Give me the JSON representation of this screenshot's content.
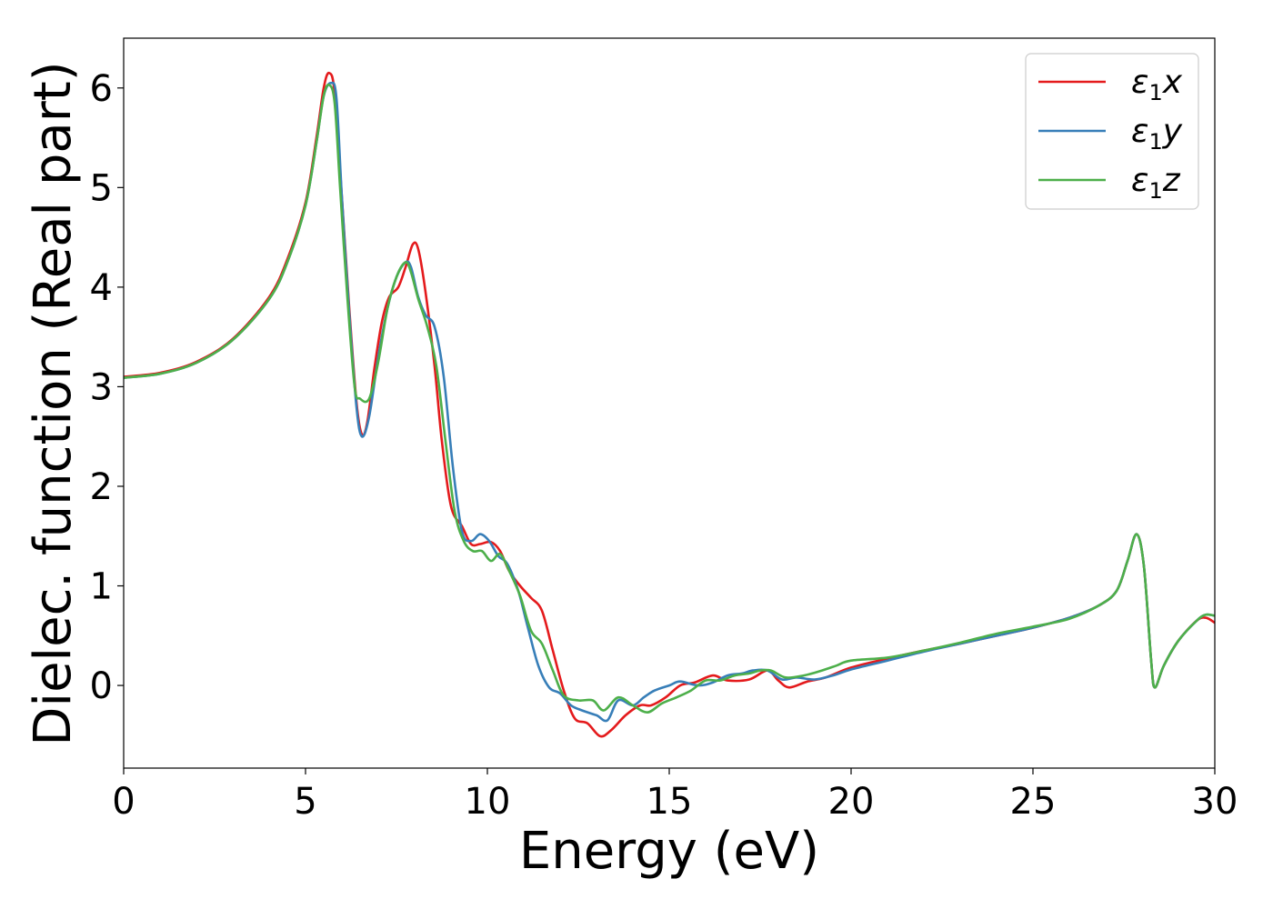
{
  "chart_data": {
    "type": "line",
    "title": "",
    "xlabel": "Energy (eV)",
    "ylabel": "Dielec. function (Real part)",
    "xlim": [
      0,
      30
    ],
    "ylim": [
      -0.83,
      6.5
    ],
    "xticks": [
      0,
      5,
      10,
      15,
      20,
      25,
      30
    ],
    "xtick_labels": [
      "0",
      "5",
      "10",
      "15",
      "20",
      "25",
      "30"
    ],
    "yticks": [
      0,
      1,
      2,
      3,
      4,
      5,
      6
    ],
    "ytick_labels": [
      "0",
      "1",
      "2",
      "3",
      "4",
      "5",
      "6"
    ],
    "grid": false,
    "legend_position": "top-right",
    "series": [
      {
        "name": "ε1x",
        "symbol": "ε",
        "subscript": "1",
        "axis_var": "x",
        "color": "#e41a1c",
        "points": [
          [
            0,
            3.1
          ],
          [
            1,
            3.14
          ],
          [
            2,
            3.25
          ],
          [
            3,
            3.48
          ],
          [
            4,
            3.9
          ],
          [
            4.5,
            4.28
          ],
          [
            5,
            4.85
          ],
          [
            5.3,
            5.5
          ],
          [
            5.5,
            6.0
          ],
          [
            5.65,
            6.15
          ],
          [
            5.8,
            5.95
          ],
          [
            6.0,
            4.9
          ],
          [
            6.2,
            3.8
          ],
          [
            6.4,
            2.85
          ],
          [
            6.55,
            2.52
          ],
          [
            6.7,
            2.65
          ],
          [
            6.9,
            3.2
          ],
          [
            7.1,
            3.65
          ],
          [
            7.3,
            3.9
          ],
          [
            7.55,
            4.0
          ],
          [
            7.75,
            4.2
          ],
          [
            7.95,
            4.43
          ],
          [
            8.1,
            4.38
          ],
          [
            8.3,
            3.95
          ],
          [
            8.55,
            3.2
          ],
          [
            8.75,
            2.45
          ],
          [
            9.0,
            1.8
          ],
          [
            9.3,
            1.6
          ],
          [
            9.55,
            1.42
          ],
          [
            9.8,
            1.42
          ],
          [
            10.1,
            1.44
          ],
          [
            10.35,
            1.35
          ],
          [
            10.6,
            1.15
          ],
          [
            10.9,
            1.0
          ],
          [
            11.2,
            0.88
          ],
          [
            11.5,
            0.75
          ],
          [
            11.8,
            0.35
          ],
          [
            12.1,
            -0.05
          ],
          [
            12.4,
            -0.33
          ],
          [
            12.75,
            -0.38
          ],
          [
            13.1,
            -0.51
          ],
          [
            13.4,
            -0.45
          ],
          [
            13.8,
            -0.3
          ],
          [
            14.2,
            -0.2
          ],
          [
            14.5,
            -0.2
          ],
          [
            14.9,
            -0.12
          ],
          [
            15.3,
            0.0
          ],
          [
            15.7,
            0.03
          ],
          [
            16.2,
            0.1
          ],
          [
            16.6,
            0.05
          ],
          [
            17.2,
            0.06
          ],
          [
            17.7,
            0.15
          ],
          [
            18.0,
            0.05
          ],
          [
            18.3,
            -0.02
          ],
          [
            18.8,
            0.04
          ],
          [
            19.3,
            0.08
          ],
          [
            20,
            0.18
          ],
          [
            21,
            0.27
          ],
          [
            22,
            0.35
          ],
          [
            23,
            0.42
          ],
          [
            24,
            0.5
          ],
          [
            25,
            0.58
          ],
          [
            26,
            0.68
          ],
          [
            26.8,
            0.8
          ],
          [
            27.3,
            0.95
          ],
          [
            27.6,
            1.25
          ],
          [
            27.85,
            1.52
          ],
          [
            28.05,
            1.2
          ],
          [
            28.25,
            0.25
          ],
          [
            28.35,
            -0.02
          ],
          [
            28.6,
            0.2
          ],
          [
            29.0,
            0.45
          ],
          [
            29.5,
            0.65
          ],
          [
            29.75,
            0.68
          ],
          [
            30,
            0.63
          ]
        ]
      },
      {
        "name": "ε1y",
        "symbol": "ε",
        "subscript": "1",
        "axis_var": "y",
        "color": "#377eb8",
        "points": [
          [
            0,
            3.09
          ],
          [
            1,
            3.13
          ],
          [
            2,
            3.24
          ],
          [
            3,
            3.47
          ],
          [
            4,
            3.88
          ],
          [
            4.5,
            4.25
          ],
          [
            5,
            4.82
          ],
          [
            5.3,
            5.45
          ],
          [
            5.5,
            5.92
          ],
          [
            5.7,
            6.05
          ],
          [
            5.85,
            5.9
          ],
          [
            6.0,
            4.9
          ],
          [
            6.2,
            3.75
          ],
          [
            6.4,
            2.8
          ],
          [
            6.55,
            2.5
          ],
          [
            6.75,
            2.7
          ],
          [
            7.0,
            3.3
          ],
          [
            7.25,
            3.78
          ],
          [
            7.5,
            4.1
          ],
          [
            7.75,
            4.25
          ],
          [
            7.9,
            4.2
          ],
          [
            8.1,
            3.9
          ],
          [
            8.3,
            3.72
          ],
          [
            8.55,
            3.6
          ],
          [
            8.8,
            3.1
          ],
          [
            9.05,
            2.2
          ],
          [
            9.3,
            1.55
          ],
          [
            9.55,
            1.45
          ],
          [
            9.8,
            1.52
          ],
          [
            10.05,
            1.45
          ],
          [
            10.3,
            1.3
          ],
          [
            10.55,
            1.22
          ],
          [
            10.85,
            0.95
          ],
          [
            11.1,
            0.6
          ],
          [
            11.4,
            0.2
          ],
          [
            11.7,
            -0.02
          ],
          [
            12.0,
            -0.08
          ],
          [
            12.3,
            -0.2
          ],
          [
            12.6,
            -0.25
          ],
          [
            13.0,
            -0.3
          ],
          [
            13.3,
            -0.35
          ],
          [
            13.6,
            -0.15
          ],
          [
            14.0,
            -0.2
          ],
          [
            14.3,
            -0.12
          ],
          [
            14.6,
            -0.05
          ],
          [
            15.0,
            0.0
          ],
          [
            15.3,
            0.04
          ],
          [
            15.8,
            0.0
          ],
          [
            16.2,
            0.03
          ],
          [
            16.6,
            0.1
          ],
          [
            17.0,
            0.12
          ],
          [
            17.3,
            0.15
          ],
          [
            17.7,
            0.15
          ],
          [
            18.1,
            0.06
          ],
          [
            18.5,
            0.08
          ],
          [
            19.0,
            0.06
          ],
          [
            19.5,
            0.1
          ],
          [
            20,
            0.16
          ],
          [
            21,
            0.25
          ],
          [
            22,
            0.34
          ],
          [
            23,
            0.42
          ],
          [
            24,
            0.5
          ],
          [
            25,
            0.58
          ],
          [
            26,
            0.68
          ],
          [
            26.8,
            0.8
          ],
          [
            27.3,
            0.95
          ],
          [
            27.6,
            1.25
          ],
          [
            27.85,
            1.52
          ],
          [
            28.05,
            1.2
          ],
          [
            28.25,
            0.25
          ],
          [
            28.35,
            -0.02
          ],
          [
            28.6,
            0.2
          ],
          [
            29.0,
            0.45
          ],
          [
            29.5,
            0.65
          ],
          [
            29.75,
            0.71
          ],
          [
            30,
            0.7
          ]
        ]
      },
      {
        "name": "ε1z",
        "symbol": "ε",
        "subscript": "1",
        "axis_var": "z",
        "color": "#4daf4a",
        "points": [
          [
            0,
            3.09
          ],
          [
            1,
            3.13
          ],
          [
            2,
            3.24
          ],
          [
            3,
            3.47
          ],
          [
            4,
            3.88
          ],
          [
            4.5,
            4.25
          ],
          [
            5,
            4.82
          ],
          [
            5.3,
            5.45
          ],
          [
            5.5,
            5.92
          ],
          [
            5.65,
            6.03
          ],
          [
            5.8,
            5.85
          ],
          [
            5.95,
            5.0
          ],
          [
            6.15,
            3.9
          ],
          [
            6.35,
            3.0
          ],
          [
            6.5,
            2.88
          ],
          [
            6.75,
            2.88
          ],
          [
            7.0,
            3.25
          ],
          [
            7.25,
            3.78
          ],
          [
            7.5,
            4.1
          ],
          [
            7.75,
            4.25
          ],
          [
            7.9,
            4.15
          ],
          [
            8.1,
            3.88
          ],
          [
            8.35,
            3.6
          ],
          [
            8.6,
            3.2
          ],
          [
            8.85,
            2.45
          ],
          [
            9.1,
            1.75
          ],
          [
            9.35,
            1.45
          ],
          [
            9.6,
            1.35
          ],
          [
            9.85,
            1.35
          ],
          [
            10.1,
            1.25
          ],
          [
            10.35,
            1.32
          ],
          [
            10.6,
            1.15
          ],
          [
            10.9,
            0.9
          ],
          [
            11.2,
            0.55
          ],
          [
            11.5,
            0.42
          ],
          [
            11.8,
            0.15
          ],
          [
            12.1,
            -0.1
          ],
          [
            12.5,
            -0.15
          ],
          [
            12.9,
            -0.15
          ],
          [
            13.2,
            -0.25
          ],
          [
            13.6,
            -0.12
          ],
          [
            14.0,
            -0.2
          ],
          [
            14.4,
            -0.27
          ],
          [
            14.8,
            -0.18
          ],
          [
            15.2,
            -0.12
          ],
          [
            15.6,
            -0.05
          ],
          [
            16.0,
            0.05
          ],
          [
            16.4,
            0.05
          ],
          [
            16.8,
            0.1
          ],
          [
            17.2,
            0.12
          ],
          [
            17.5,
            0.15
          ],
          [
            17.8,
            0.15
          ],
          [
            18.2,
            0.08
          ],
          [
            18.7,
            0.1
          ],
          [
            19.2,
            0.15
          ],
          [
            19.6,
            0.2
          ],
          [
            20,
            0.25
          ],
          [
            21,
            0.28
          ],
          [
            22,
            0.35
          ],
          [
            23,
            0.43
          ],
          [
            24,
            0.52
          ],
          [
            25,
            0.59
          ],
          [
            26,
            0.67
          ],
          [
            26.8,
            0.8
          ],
          [
            27.3,
            0.95
          ],
          [
            27.6,
            1.25
          ],
          [
            27.85,
            1.52
          ],
          [
            28.05,
            1.2
          ],
          [
            28.25,
            0.25
          ],
          [
            28.35,
            -0.02
          ],
          [
            28.6,
            0.2
          ],
          [
            29.0,
            0.45
          ],
          [
            29.5,
            0.65
          ],
          [
            29.75,
            0.71
          ],
          [
            30,
            0.7
          ]
        ]
      }
    ]
  }
}
